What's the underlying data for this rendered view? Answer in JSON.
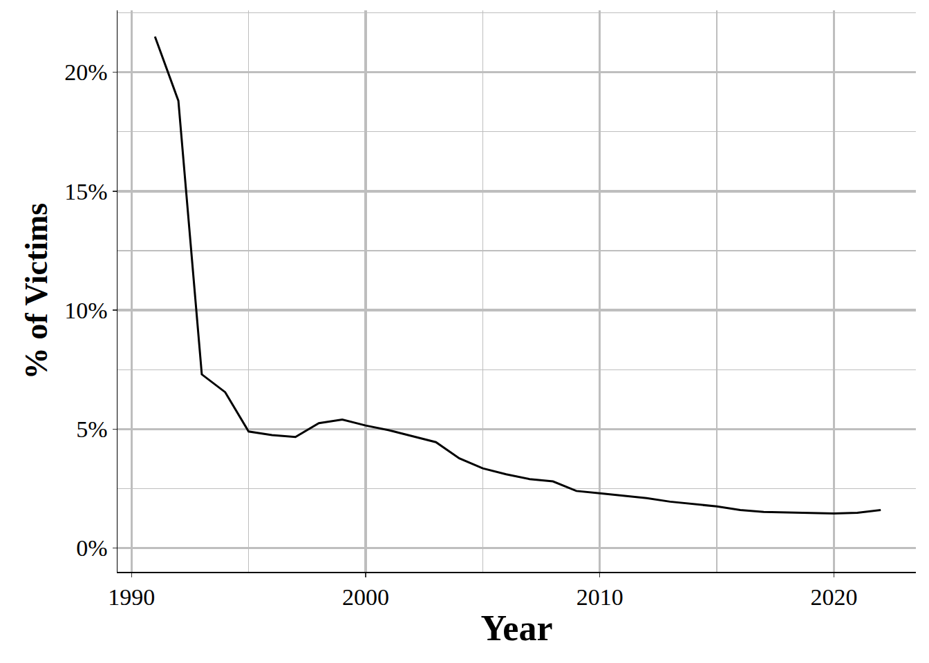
{
  "chart_data": {
    "type": "line",
    "x_label": "Year",
    "y_label": "% of Victims",
    "x": [
      1991,
      1992,
      1993,
      1994,
      1995,
      1996,
      1997,
      1998,
      1999,
      2000,
      2001,
      2002,
      2003,
      2004,
      2005,
      2006,
      2007,
      2008,
      2009,
      2010,
      2011,
      2012,
      2013,
      2014,
      2015,
      2016,
      2017,
      2018,
      2019,
      2020,
      2021,
      2022
    ],
    "values": [
      21.5,
      18.8,
      7.3,
      6.55,
      4.9,
      4.75,
      4.67,
      5.25,
      5.4,
      5.15,
      4.95,
      4.7,
      4.45,
      3.77,
      3.35,
      3.1,
      2.9,
      2.8,
      2.4,
      2.3,
      2.2,
      2.1,
      1.95,
      1.85,
      1.75,
      1.6,
      1.52,
      1.5,
      1.48,
      1.45,
      1.48,
      1.6
    ],
    "color": "#000000",
    "xlim": [
      1989.4,
      2023.5
    ],
    "xticks": [
      1990,
      2000,
      2010,
      2020
    ],
    "ylim": [
      -1.0,
      22.6
    ],
    "yticks": [
      {
        "value": 0,
        "label": "0%"
      },
      {
        "value": 5,
        "label": "5%"
      },
      {
        "value": 10,
        "label": "10%"
      },
      {
        "value": 15,
        "label": "15%"
      },
      {
        "value": 20,
        "label": "20%"
      }
    ],
    "grid": true
  }
}
